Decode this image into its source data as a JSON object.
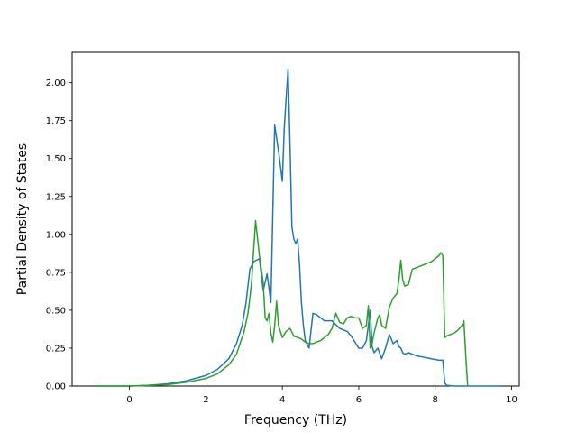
{
  "chart_data": {
    "type": "line",
    "title": "",
    "xlabel": "Frequency (THz)",
    "ylabel": "Partial Density of States",
    "xlim": [
      -1.5,
      10.2
    ],
    "ylim": [
      0.0,
      2.2
    ],
    "xticks": [
      0,
      2,
      4,
      6,
      8,
      10
    ],
    "xtick_labels": [
      "0",
      "2",
      "4",
      "6",
      "8",
      "10"
    ],
    "yticks": [
      0.0,
      0.25,
      0.5,
      0.75,
      1.0,
      1.25,
      1.5,
      1.75,
      2.0
    ],
    "ytick_labels": [
      "0.00",
      "0.25",
      "0.50",
      "0.75",
      "1.00",
      "1.25",
      "1.50",
      "1.75",
      "2.00"
    ],
    "grid": false,
    "legend": "none",
    "series": [
      {
        "color": "#1f77b4",
        "x": [
          -0.9,
          0.0,
          0.5,
          1.0,
          1.5,
          2.0,
          2.3,
          2.6,
          2.8,
          2.95,
          3.05,
          3.15,
          3.25,
          3.4,
          3.5,
          3.6,
          3.7,
          3.8,
          3.9,
          4.0,
          4.05,
          4.1,
          4.15,
          4.2,
          4.25,
          4.3,
          4.35,
          4.4,
          4.45,
          4.5,
          4.55,
          4.6,
          4.7,
          4.8,
          4.9,
          5.0,
          5.1,
          5.3,
          5.5,
          5.7,
          5.8,
          6.0,
          6.1,
          6.2,
          6.3,
          6.35,
          6.4,
          6.5,
          6.6,
          6.7,
          6.8,
          6.9,
          7.0,
          7.05,
          7.1,
          7.15,
          7.2,
          7.3,
          7.5,
          7.7,
          7.9,
          8.1,
          8.2,
          8.25,
          8.3,
          8.5,
          9.0,
          9.7
        ],
        "y": [
          0.0,
          0.0,
          0.005,
          0.015,
          0.035,
          0.07,
          0.11,
          0.18,
          0.28,
          0.4,
          0.55,
          0.77,
          0.82,
          0.84,
          0.63,
          0.74,
          0.55,
          1.72,
          1.55,
          1.35,
          1.7,
          1.9,
          2.09,
          1.6,
          1.05,
          0.97,
          0.94,
          0.97,
          0.8,
          0.55,
          0.4,
          0.3,
          0.25,
          0.48,
          0.47,
          0.45,
          0.43,
          0.43,
          0.38,
          0.36,
          0.33,
          0.25,
          0.25,
          0.3,
          0.5,
          0.26,
          0.22,
          0.25,
          0.18,
          0.25,
          0.34,
          0.28,
          0.3,
          0.26,
          0.25,
          0.22,
          0.21,
          0.22,
          0.2,
          0.19,
          0.18,
          0.17,
          0.17,
          0.02,
          0.005,
          0.0,
          0.0,
          0.0
        ]
      },
      {
        "color": "#2ca02c",
        "x": [
          -0.9,
          0.0,
          0.5,
          1.0,
          1.5,
          2.0,
          2.3,
          2.6,
          2.8,
          3.0,
          3.1,
          3.15,
          3.2,
          3.25,
          3.3,
          3.4,
          3.5,
          3.55,
          3.6,
          3.65,
          3.7,
          3.75,
          3.8,
          3.85,
          3.9,
          4.0,
          4.1,
          4.2,
          4.3,
          4.4,
          4.5,
          4.6,
          4.7,
          4.8,
          4.9,
          5.0,
          5.2,
          5.3,
          5.4,
          5.5,
          5.6,
          5.7,
          5.8,
          5.9,
          6.0,
          6.1,
          6.2,
          6.25,
          6.3,
          6.35,
          6.4,
          6.5,
          6.55,
          6.6,
          6.7,
          6.8,
          6.9,
          7.0,
          7.05,
          7.1,
          7.15,
          7.2,
          7.3,
          7.4,
          7.5,
          7.6,
          7.7,
          7.8,
          7.9,
          8.0,
          8.1,
          8.15,
          8.2,
          8.25,
          8.3,
          8.4,
          8.5,
          8.6,
          8.7,
          8.75,
          8.8,
          8.85
        ],
        "y": [
          0.0,
          0.0,
          0.004,
          0.01,
          0.025,
          0.05,
          0.08,
          0.14,
          0.21,
          0.36,
          0.48,
          0.58,
          0.7,
          0.9,
          1.09,
          0.86,
          0.68,
          0.45,
          0.43,
          0.48,
          0.35,
          0.29,
          0.4,
          0.56,
          0.4,
          0.32,
          0.36,
          0.38,
          0.33,
          0.32,
          0.31,
          0.29,
          0.28,
          0.28,
          0.29,
          0.3,
          0.34,
          0.38,
          0.48,
          0.42,
          0.41,
          0.45,
          0.46,
          0.45,
          0.45,
          0.38,
          0.4,
          0.53,
          0.25,
          0.28,
          0.35,
          0.45,
          0.47,
          0.4,
          0.38,
          0.52,
          0.58,
          0.61,
          0.7,
          0.83,
          0.7,
          0.66,
          0.67,
          0.77,
          0.78,
          0.79,
          0.8,
          0.81,
          0.82,
          0.84,
          0.86,
          0.88,
          0.86,
          0.32,
          0.33,
          0.34,
          0.35,
          0.37,
          0.4,
          0.43,
          0.2,
          0.0
        ]
      }
    ]
  }
}
